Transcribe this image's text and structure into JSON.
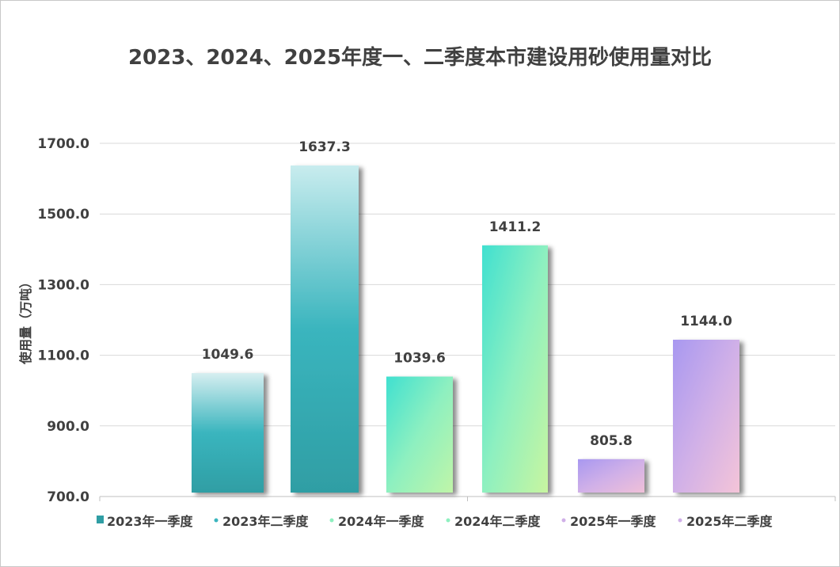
{
  "chart_data": {
    "type": "bar",
    "title": "2023、2024、2025年度一、二季度本市建设用砂使用量对比",
    "xlabel": "",
    "ylabel": "使用量（万吨）",
    "ylim": [
      700,
      1700
    ],
    "yticks": [
      "700.0",
      "900.0",
      "1100.0",
      "1300.0",
      "1500.0",
      "1700.0"
    ],
    "grid": true,
    "legend": "bottom",
    "series": [
      {
        "name": "2023年一季度",
        "value": 1049.6,
        "label": "1049.6",
        "colors": [
          "#d6eef0",
          "#3ab5be",
          "#2f9ea4"
        ]
      },
      {
        "name": "2023年二季度",
        "value": 1637.3,
        "label": "1637.3",
        "colors": [
          "#c8ecee",
          "#3ab5be",
          "#2f9ea4"
        ]
      },
      {
        "name": "2024年一季度",
        "value": 1039.6,
        "label": "1039.6",
        "colors": [
          "#40e0d0",
          "#8ef0c0",
          "#c0f5a8"
        ]
      },
      {
        "name": "2024年二季度",
        "value": 1411.2,
        "label": "1411.2",
        "colors": [
          "#40e0d0",
          "#8ef0c0",
          "#c8f5a0"
        ]
      },
      {
        "name": "2025年一季度",
        "value": 805.8,
        "label": "805.8",
        "colors": [
          "#a898f0",
          "#d0b0e8",
          "#f0c0d8"
        ]
      },
      {
        "name": "2025年二季度",
        "value": 1144.0,
        "label": "1144.0",
        "colors": [
          "#a898f0",
          "#d0b0e8",
          "#f4c4d8"
        ]
      }
    ]
  }
}
